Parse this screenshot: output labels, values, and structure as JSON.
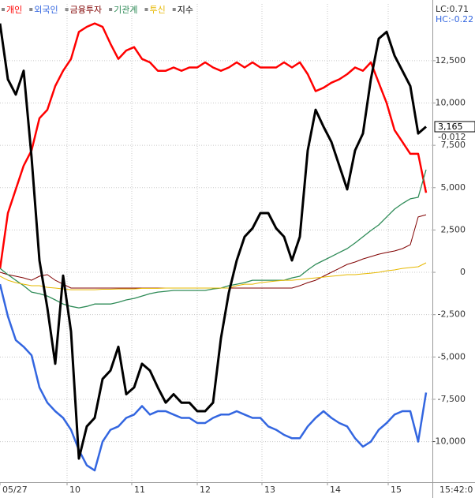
{
  "chart_data": {
    "type": "line",
    "grid": true,
    "corner_labels": [
      "LC:0.71",
      "HC:-0.22"
    ],
    "current_labels": [
      "3,165",
      "-0.012"
    ],
    "time_label": "15:42:0",
    "x": [
      0,
      10,
      20,
      30,
      40,
      50,
      60,
      70,
      80,
      90,
      100,
      110,
      120,
      130,
      140,
      150,
      160,
      170,
      180,
      190,
      200,
      210,
      220,
      230,
      240,
      250,
      260,
      270,
      280,
      290,
      300,
      310,
      320,
      330,
      340,
      350,
      360,
      370,
      380,
      390,
      400,
      410,
      420,
      430,
      440,
      450,
      460,
      470,
      480,
      490,
      500,
      510,
      520,
      530,
      540
    ],
    "xlim": [
      0,
      548
    ],
    "xticks": [
      {
        "value": 0,
        "label": "05/27"
      },
      {
        "value": 85,
        "label": "10"
      },
      {
        "value": 167,
        "label": "11"
      },
      {
        "value": 250,
        "label": "12"
      },
      {
        "value": 332,
        "label": "13"
      },
      {
        "value": 415,
        "label": "14"
      },
      {
        "value": 492,
        "label": "15"
      }
    ],
    "ylim": [
      -12350,
      15850
    ],
    "yticks": [
      {
        "value": 12500,
        "label": "12,500"
      },
      {
        "value": 10000,
        "label": "10,000"
      },
      {
        "value": 7500,
        "label": "7,500"
      },
      {
        "value": 5000,
        "label": "5,000"
      },
      {
        "value": 2500,
        "label": "2,500"
      },
      0,
      {
        "value": -2500,
        "label": "-2,500"
      },
      {
        "value": -5000,
        "label": "-5,000"
      },
      {
        "value": -7500,
        "label": "-7,500"
      },
      {
        "value": -10000,
        "label": "-10,000"
      }
    ],
    "series": [
      {
        "name": "개인",
        "color": "#ff0000",
        "width": 2.5,
        "values": [
          200,
          3500,
          4900,
          6300,
          7200,
          9100,
          9600,
          11000,
          11900,
          12600,
          14200,
          14500,
          14700,
          14500,
          13500,
          12600,
          13100,
          13300,
          12600,
          12400,
          11900,
          11900,
          12100,
          11900,
          12100,
          12100,
          12400,
          12100,
          11900,
          12100,
          12400,
          12100,
          12400,
          12100,
          12100,
          12100,
          12400,
          12100,
          12400,
          11700,
          10700,
          10900,
          11200,
          11400,
          11700,
          12100,
          11900,
          12400,
          11200,
          10000,
          8400,
          7700,
          7000,
          7000,
          4700
        ]
      },
      {
        "name": "외국인",
        "color": "#3366e0",
        "width": 2.5,
        "values": [
          -700,
          -2600,
          -4000,
          -4400,
          -4900,
          -6800,
          -7700,
          -8200,
          -8600,
          -9300,
          -10500,
          -11400,
          -11700,
          -10000,
          -9300,
          -9100,
          -8600,
          -8400,
          -7900,
          -8400,
          -8200,
          -8200,
          -8400,
          -8600,
          -8600,
          -8900,
          -8900,
          -8600,
          -8400,
          -8400,
          -8200,
          -8400,
          -8600,
          -8600,
          -9100,
          -9300,
          -9600,
          -9800,
          -9800,
          -9100,
          -8600,
          -8200,
          -8600,
          -8900,
          -9100,
          -9800,
          -10300,
          -10000,
          -9300,
          -8900,
          -8400,
          -8200,
          -8200,
          -10000,
          -7100
        ]
      },
      {
        "name": "금융투자",
        "color": "#800000",
        "width": 1,
        "values": [
          0,
          -140,
          -230,
          -330,
          -470,
          -230,
          -140,
          -470,
          -700,
          -930,
          -930,
          -930,
          -930,
          -930,
          -930,
          -930,
          -930,
          -930,
          -930,
          -930,
          -930,
          -930,
          -930,
          -930,
          -930,
          -930,
          -930,
          -930,
          -930,
          -930,
          -930,
          -930,
          -930,
          -930,
          -930,
          -930,
          -930,
          -930,
          -790,
          -610,
          -470,
          -230,
          0,
          230,
          470,
          610,
          790,
          930,
          1070,
          1170,
          1260,
          1400,
          1630,
          3270,
          3400
        ]
      },
      {
        "name": "기관계",
        "color": "#2e8b57",
        "width": 1.3,
        "values": [
          233,
          -140,
          -470,
          -790,
          -1170,
          -1260,
          -1400,
          -1630,
          -1870,
          -2010,
          -2100,
          -2010,
          -1870,
          -1870,
          -1870,
          -1770,
          -1630,
          -1540,
          -1400,
          -1260,
          -1170,
          -1120,
          -1070,
          -1070,
          -1070,
          -1070,
          -1070,
          -980,
          -930,
          -790,
          -700,
          -610,
          -470,
          -470,
          -470,
          -470,
          -470,
          -330,
          -230,
          140,
          470,
          700,
          930,
          1170,
          1400,
          1730,
          2100,
          2470,
          2800,
          3270,
          3730,
          4060,
          4340,
          4430,
          6060
        ]
      },
      {
        "name": "투신",
        "color": "#e6b800",
        "width": 1,
        "values": [
          -230,
          -470,
          -610,
          -700,
          -790,
          -790,
          -890,
          -930,
          -980,
          -1030,
          -1030,
          -1030,
          -1030,
          -1000,
          -1000,
          -980,
          -980,
          -980,
          -950,
          -950,
          -950,
          -930,
          -930,
          -930,
          -930,
          -930,
          -930,
          -930,
          -930,
          -930,
          -790,
          -700,
          -700,
          -610,
          -560,
          -510,
          -470,
          -470,
          -420,
          -370,
          -330,
          -280,
          -230,
          -190,
          -140,
          -140,
          -90,
          -50,
          0,
          90,
          140,
          230,
          280,
          330,
          560
        ]
      },
      {
        "name": "지수",
        "color": "#000000",
        "width": 3,
        "values": [
          14700,
          11400,
          10500,
          11900,
          6800,
          700,
          -2100,
          -5400,
          -200,
          -3500,
          -11000,
          -9100,
          -8600,
          -6300,
          -5800,
          -4400,
          -7200,
          -6800,
          -5400,
          -5800,
          -6800,
          -7700,
          -7200,
          -7700,
          -7700,
          -8200,
          -8200,
          -7700,
          -3900,
          -1200,
          700,
          2100,
          2600,
          3500,
          3500,
          2600,
          2100,
          700,
          2100,
          7200,
          9600,
          8600,
          7700,
          6300,
          4900,
          7200,
          8200,
          11400,
          13800,
          14200,
          12800,
          11900,
          11000,
          8200,
          8600
        ]
      }
    ]
  }
}
